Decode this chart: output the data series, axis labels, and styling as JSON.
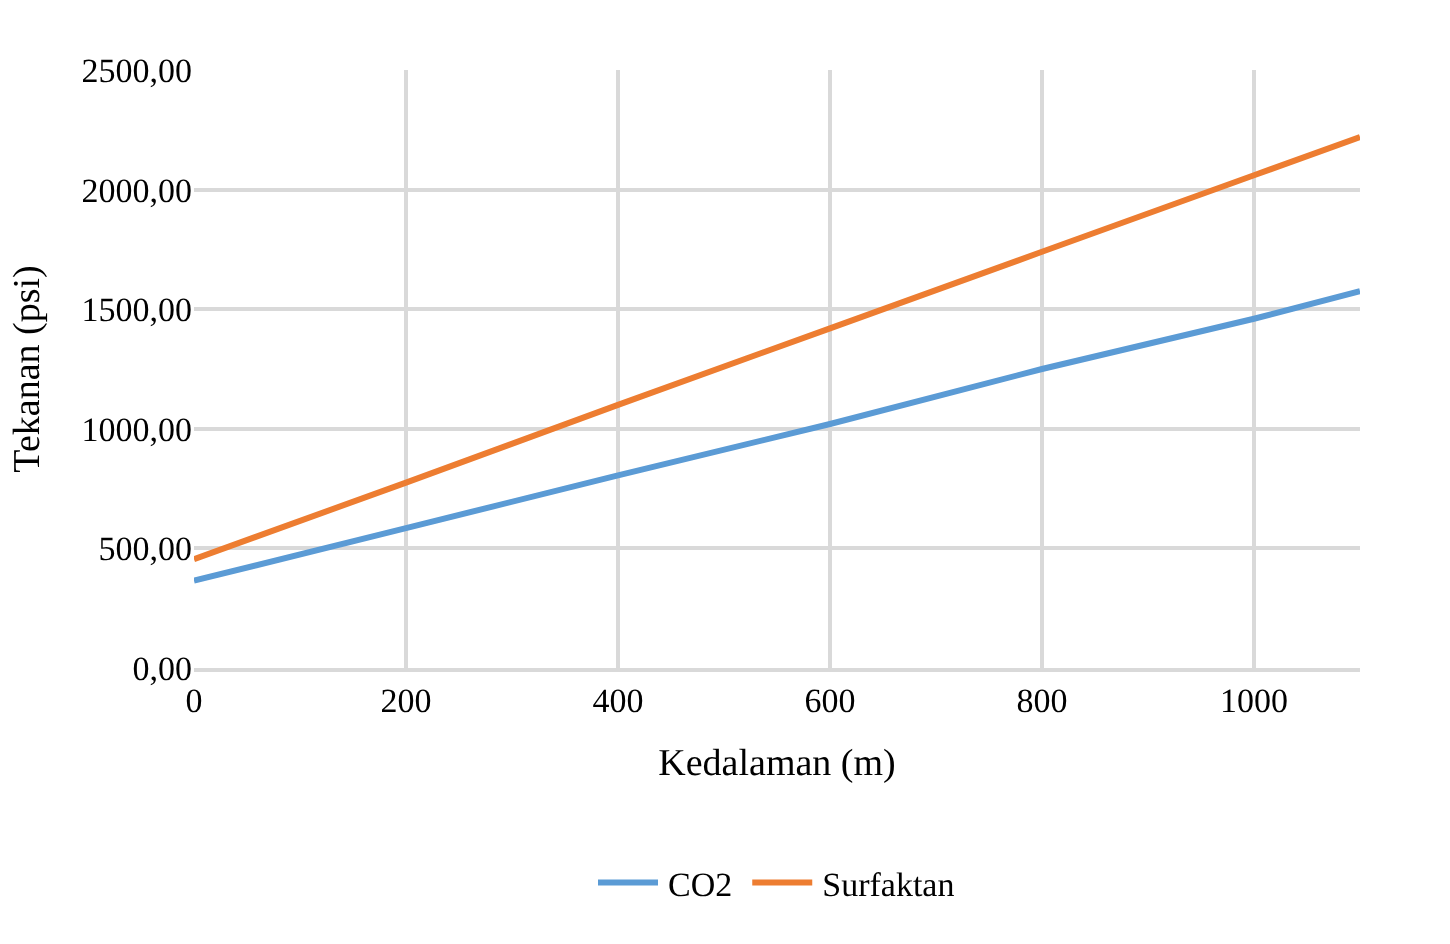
{
  "chart_data": {
    "type": "line",
    "xlabel": "Kedalaman (m)",
    "ylabel": "Tekanan (psi)",
    "x": [
      0,
      200,
      400,
      600,
      800,
      1000,
      1100
    ],
    "series": [
      {
        "name": "CO2",
        "color": "#5b9bd5",
        "values": [
          365,
          585,
          805,
          1020,
          1250,
          1460,
          1575
        ]
      },
      {
        "name": "Surfaktan",
        "color": "#ed7d31",
        "values": [
          455,
          775,
          1100,
          1420,
          1740,
          2060,
          2220
        ]
      }
    ],
    "xlim": [
      0,
      1100
    ],
    "xticks": [
      0,
      200,
      400,
      600,
      800,
      1000
    ],
    "ylim": [
      0,
      2500
    ],
    "yticks": [
      {
        "value": 0,
        "label": "0,00"
      },
      {
        "value": 500,
        "label": "500,00"
      },
      {
        "value": 1000,
        "label": "1000,00"
      },
      {
        "value": 1500,
        "label": "1500,00"
      },
      {
        "value": 2000,
        "label": "2000,00"
      },
      {
        "value": 2500,
        "label": "2500,00"
      }
    ],
    "grid": true,
    "legend": "bottom",
    "marker": "none",
    "line_style": "solid"
  }
}
